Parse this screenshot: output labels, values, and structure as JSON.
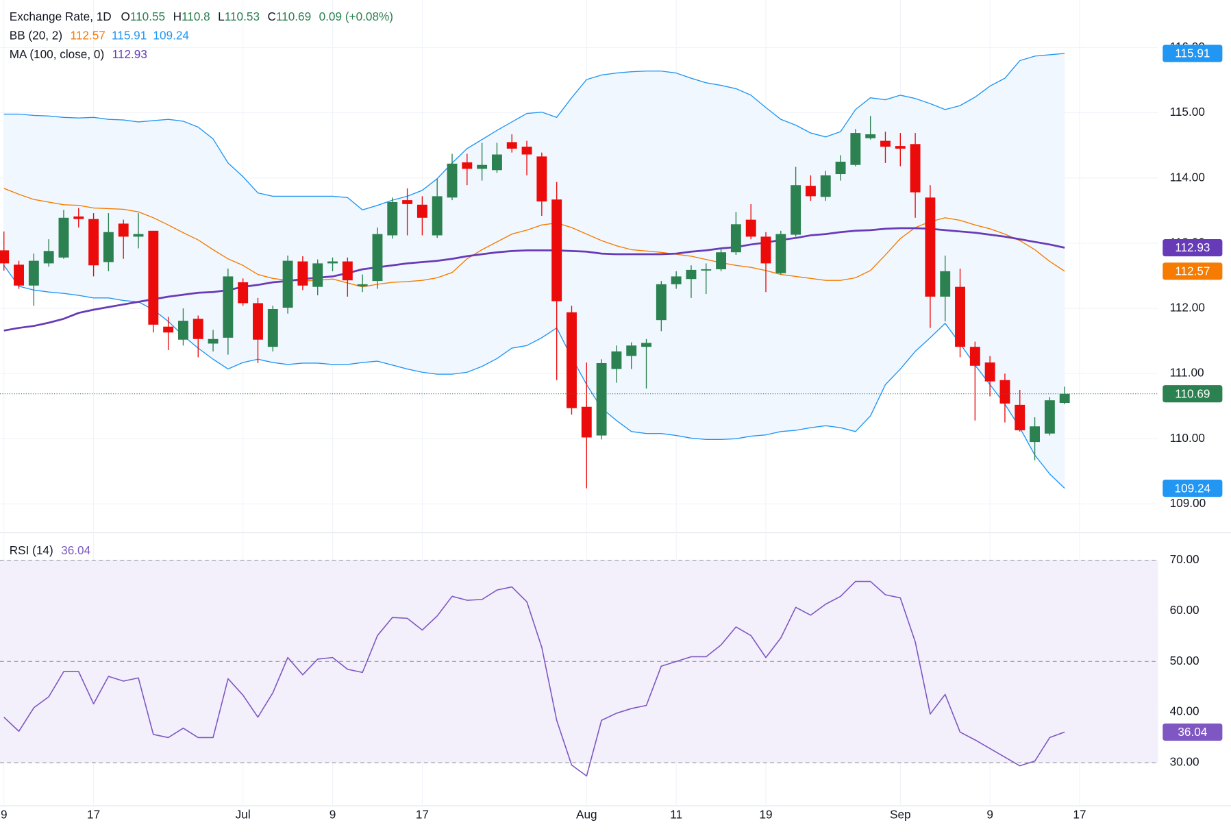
{
  "chart_data": [
    {
      "type": "candlestick",
      "title": "Exchange Rate, 1D",
      "legend": {
        "open": "O",
        "high": "H",
        "low": "L",
        "close": "C",
        "change": "0.09 (+0.08%)"
      },
      "categories": [
        "9",
        null,
        null,
        null,
        null,
        null,
        "17",
        null,
        null,
        null,
        null,
        null,
        null,
        null,
        null,
        null,
        "Jul",
        null,
        null,
        null,
        null,
        null,
        "9",
        null,
        null,
        null,
        null,
        null,
        "17",
        null,
        null,
        null,
        null,
        null,
        null,
        null,
        null,
        null,
        null,
        "Aug",
        null,
        null,
        null,
        null,
        null,
        "11",
        null,
        null,
        null,
        null,
        null,
        "19",
        null,
        null,
        null,
        null,
        null,
        null,
        null,
        null,
        "Sep",
        null,
        null,
        null,
        null,
        null,
        "9",
        null,
        null,
        null,
        null,
        null,
        "17"
      ],
      "open": [
        112.89,
        112.67,
        112.35,
        112.69,
        112.78,
        113.41,
        113.37,
        112.71,
        113.3,
        113.1,
        113.19,
        111.72,
        111.52,
        111.84,
        111.46,
        111.55,
        112.4,
        112.08,
        111.41,
        112.01,
        112.72,
        112.33,
        112.69,
        112.72,
        112.34,
        112.42,
        113.12,
        113.66,
        113.59,
        113.12,
        113.7,
        114.24,
        114.14,
        114.12,
        114.55,
        114.48,
        114.33,
        113.67,
        111.94,
        110.49,
        110.05,
        111.07,
        111.27,
        111.41,
        111.82,
        112.37,
        112.45,
        112.58,
        112.6,
        112.86,
        113.36,
        113.1,
        112.54,
        113.13,
        113.88,
        113.71,
        114.06,
        114.2,
        114.61,
        114.57,
        114.49,
        114.52,
        113.7,
        112.18,
        112.33,
        111.41,
        111.17,
        110.9,
        110.52,
        109.95,
        110.08,
        110.55,
        null
      ],
      "high": [
        113.18,
        112.73,
        112.84,
        113.06,
        113.51,
        113.54,
        113.46,
        113.46,
        113.36,
        113.46,
        113.19,
        111.87,
        112.0,
        111.89,
        111.67,
        112.61,
        112.46,
        112.16,
        112.04,
        112.81,
        112.8,
        112.75,
        112.78,
        112.78,
        112.52,
        113.24,
        113.7,
        113.84,
        113.72,
        113.99,
        114.37,
        114.37,
        114.54,
        114.54,
        114.67,
        114.57,
        114.39,
        113.94,
        112.04,
        111.17,
        111.22,
        111.43,
        111.48,
        111.53,
        112.42,
        112.57,
        112.66,
        112.69,
        112.93,
        113.48,
        113.6,
        113.17,
        113.19,
        114.17,
        114.04,
        114.11,
        114.35,
        114.75,
        114.95,
        114.71,
        114.69,
        114.69,
        113.89,
        112.81,
        112.61,
        111.49,
        111.27,
        111.0,
        110.75,
        110.33,
        110.64,
        110.8,
        null
      ],
      "low": [
        112.58,
        112.3,
        112.04,
        112.64,
        112.76,
        113.24,
        112.49,
        112.57,
        112.76,
        112.92,
        111.63,
        111.36,
        111.43,
        111.25,
        111.34,
        111.29,
        112.04,
        111.16,
        111.34,
        111.92,
        112.28,
        112.2,
        112.57,
        112.18,
        112.25,
        112.3,
        113.07,
        113.12,
        113.12,
        113.08,
        113.66,
        113.89,
        113.96,
        114.08,
        114.39,
        114.04,
        113.42,
        110.9,
        110.37,
        109.24,
        109.99,
        110.86,
        111.07,
        110.77,
        111.65,
        112.3,
        112.16,
        112.22,
        112.57,
        112.82,
        113.06,
        112.25,
        112.52,
        113.1,
        113.65,
        113.65,
        113.96,
        114.18,
        114.59,
        114.23,
        114.18,
        113.39,
        111.7,
        111.8,
        111.25,
        110.28,
        110.65,
        110.25,
        110.11,
        109.67,
        110.05,
        110.53,
        null
      ],
      "close": [
        112.69,
        112.35,
        112.73,
        112.88,
        113.39,
        113.37,
        112.66,
        113.17,
        113.1,
        113.14,
        111.75,
        111.63,
        111.81,
        111.53,
        111.53,
        112.49,
        112.08,
        111.52,
        111.99,
        112.73,
        112.35,
        112.69,
        112.72,
        112.43,
        112.37,
        113.14,
        113.63,
        113.6,
        113.39,
        113.72,
        114.22,
        114.14,
        114.2,
        114.36,
        114.45,
        114.36,
        113.64,
        112.11,
        110.47,
        110.02,
        111.16,
        111.34,
        111.43,
        111.47,
        112.37,
        112.49,
        112.59,
        112.6,
        112.86,
        113.29,
        113.1,
        112.69,
        113.14,
        113.89,
        113.72,
        114.04,
        114.25,
        114.69,
        114.67,
        114.48,
        114.45,
        113.78,
        112.18,
        112.57,
        111.41,
        111.12,
        110.88,
        110.54,
        110.13,
        110.19,
        110.59,
        110.69,
        null
      ],
      "up_color": "#2b8150",
      "down_color": "#eb0b0b",
      "bb": {
        "name": "BB (20, 2)",
        "fill": "#f1f7fe",
        "basis": {
          "color": "#f57c00",
          "values": [
            113.84,
            113.75,
            113.67,
            113.63,
            113.59,
            113.58,
            113.54,
            113.53,
            113.52,
            113.48,
            113.39,
            113.28,
            113.16,
            113.05,
            112.9,
            112.76,
            112.66,
            112.52,
            112.46,
            112.43,
            112.42,
            112.43,
            112.45,
            112.39,
            112.33,
            112.37,
            112.4,
            112.41,
            112.43,
            112.47,
            112.55,
            112.76,
            112.9,
            113.02,
            113.14,
            113.2,
            113.28,
            113.31,
            113.24,
            113.14,
            113.04,
            112.96,
            112.9,
            112.88,
            112.86,
            112.83,
            112.8,
            112.75,
            112.7,
            112.66,
            112.63,
            112.58,
            112.52,
            112.49,
            112.46,
            112.43,
            112.43,
            112.47,
            112.58,
            112.82,
            113.07,
            113.24,
            113.33,
            113.39,
            113.35,
            113.28,
            113.22,
            113.14,
            113.04,
            112.9,
            112.72,
            112.57,
            null
          ]
        },
        "upper": {
          "color": "#2196f3",
          "values": [
            114.98,
            114.98,
            114.96,
            114.95,
            114.93,
            114.92,
            114.93,
            114.9,
            114.89,
            114.86,
            114.88,
            114.9,
            114.87,
            114.78,
            114.6,
            114.23,
            114.02,
            113.77,
            113.72,
            113.72,
            113.72,
            113.72,
            113.72,
            113.7,
            113.51,
            113.58,
            113.66,
            113.72,
            113.81,
            113.99,
            114.23,
            114.45,
            114.59,
            114.73,
            114.86,
            114.99,
            115.01,
            114.93,
            115.23,
            115.51,
            115.58,
            115.61,
            115.63,
            115.64,
            115.64,
            115.61,
            115.53,
            115.46,
            115.42,
            115.37,
            115.27,
            115.08,
            114.9,
            114.81,
            114.69,
            114.63,
            114.71,
            115.05,
            115.23,
            115.2,
            115.27,
            115.22,
            115.14,
            115.05,
            115.11,
            115.24,
            115.41,
            115.53,
            115.8,
            115.87,
            115.89,
            115.91,
            null
          ]
        },
        "lower": {
          "color": "#2196f3",
          "values": [
            112.66,
            112.34,
            112.28,
            112.25,
            112.23,
            112.2,
            112.16,
            112.16,
            112.12,
            112.1,
            111.98,
            111.8,
            111.58,
            111.39,
            111.22,
            111.07,
            111.17,
            111.22,
            111.17,
            111.14,
            111.16,
            111.16,
            111.14,
            111.14,
            111.17,
            111.19,
            111.13,
            111.07,
            111.02,
            110.99,
            110.99,
            111.02,
            111.11,
            111.23,
            111.39,
            111.43,
            111.55,
            111.7,
            111.25,
            110.83,
            110.47,
            110.28,
            110.11,
            110.08,
            110.08,
            110.05,
            110.01,
            109.99,
            109.99,
            110.0,
            110.04,
            110.06,
            110.11,
            110.13,
            110.17,
            110.2,
            110.17,
            110.11,
            110.35,
            110.83,
            111.07,
            111.34,
            111.55,
            111.77,
            111.46,
            111.13,
            110.83,
            110.53,
            110.17,
            109.75,
            109.46,
            109.24,
            null
          ]
        }
      },
      "ma": {
        "name": "MA (100, close, 0)",
        "color": "#673ab7",
        "values": [
          111.66,
          111.7,
          111.73,
          111.78,
          111.84,
          111.93,
          111.98,
          112.02,
          112.06,
          112.1,
          112.14,
          112.18,
          112.21,
          112.24,
          112.25,
          112.28,
          112.33,
          112.36,
          112.4,
          112.42,
          112.45,
          112.47,
          112.49,
          112.54,
          112.6,
          112.63,
          112.66,
          112.69,
          112.71,
          112.73,
          112.76,
          112.8,
          112.83,
          112.86,
          112.88,
          112.89,
          112.89,
          112.89,
          112.88,
          112.87,
          112.84,
          112.83,
          112.83,
          112.83,
          112.83,
          112.84,
          112.87,
          112.89,
          112.92,
          112.94,
          112.98,
          113.01,
          113.05,
          113.08,
          113.12,
          113.14,
          113.17,
          113.19,
          113.2,
          113.22,
          113.23,
          113.23,
          113.22,
          113.2,
          113.18,
          113.16,
          113.13,
          113.1,
          113.06,
          113.02,
          112.98,
          112.93,
          null
        ]
      },
      "ylim": [
        108.57,
        116.73
      ],
      "yticks": [
        {
          "value": 109,
          "label": "109.00"
        },
        {
          "value": 110,
          "label": "110.00"
        },
        {
          "value": 111,
          "label": "111.00"
        },
        {
          "value": 112,
          "label": "112.00"
        },
        {
          "value": 113,
          "label": "113.00"
        },
        {
          "value": 114,
          "label": "114.00"
        },
        {
          "value": 115,
          "label": "115.00"
        },
        {
          "value": 116,
          "label": "116.00"
        }
      ],
      "grid": true
    },
    {
      "type": "line",
      "title": "RSI (14)",
      "color": "#7e57c2",
      "band": [
        30,
        70
      ],
      "band_color": "#f3effb",
      "dashed_lines": [
        30,
        50,
        70
      ],
      "values": [
        38.99,
        36.2,
        40.85,
        43.02,
        47.98,
        47.98,
        41.63,
        47.05,
        46.12,
        46.74,
        35.58,
        34.96,
        36.82,
        34.96,
        34.96,
        46.59,
        43.33,
        38.99,
        43.8,
        50.78,
        47.36,
        50.47,
        50.78,
        48.45,
        47.83,
        55.12,
        58.68,
        58.53,
        56.2,
        58.99,
        62.87,
        62.09,
        62.25,
        64.11,
        64.73,
        61.78,
        52.79,
        38.37,
        29.53,
        27.36,
        38.37,
        39.77,
        40.7,
        41.32,
        49.07,
        50.0,
        50.93,
        50.93,
        53.26,
        56.82,
        55.12,
        50.78,
        54.65,
        60.7,
        59.15,
        61.32,
        62.87,
        65.81,
        65.81,
        63.18,
        62.56,
        53.88,
        39.61,
        43.49,
        36.05,
        34.5,
        32.79,
        31.09,
        29.38,
        30.31,
        34.96,
        36.04,
        null
      ],
      "ylim": [
        21.78,
        75.27
      ],
      "yticks": [
        {
          "value": 30,
          "label": "30.00"
        },
        {
          "value": 40,
          "label": "40.00"
        },
        {
          "value": 50,
          "label": "50.00"
        },
        {
          "value": 60,
          "label": "60.00"
        },
        {
          "value": 70,
          "label": "70.00"
        }
      ],
      "grid": true
    }
  ]
}
